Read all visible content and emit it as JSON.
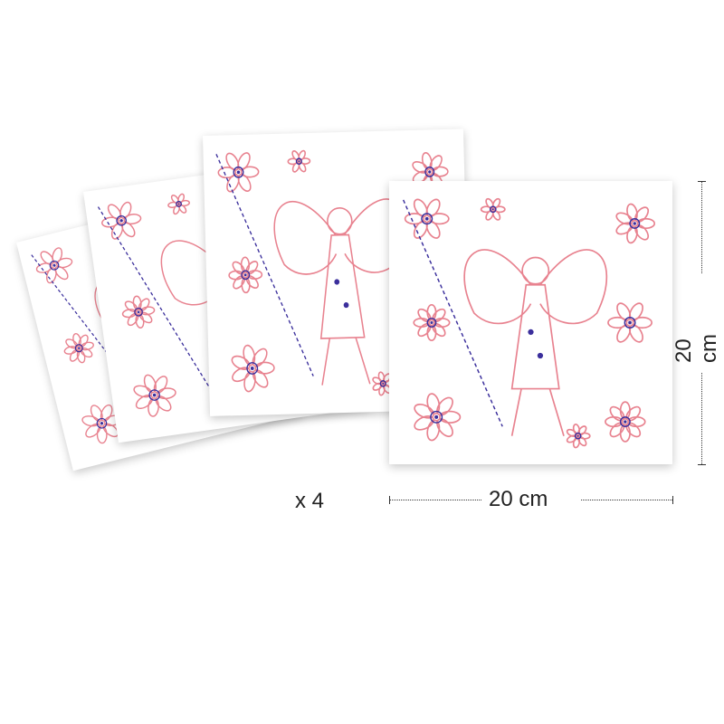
{
  "colors": {
    "pink": "#e8828f",
    "navy": "#3b2f9c",
    "background": "#ffffff"
  },
  "quantity_label": "x 4",
  "width_label": "20 cm",
  "height_label": "20 cm",
  "cards": [
    {
      "name": "card-1"
    },
    {
      "name": "card-2"
    },
    {
      "name": "card-3"
    },
    {
      "name": "card-4"
    }
  ]
}
